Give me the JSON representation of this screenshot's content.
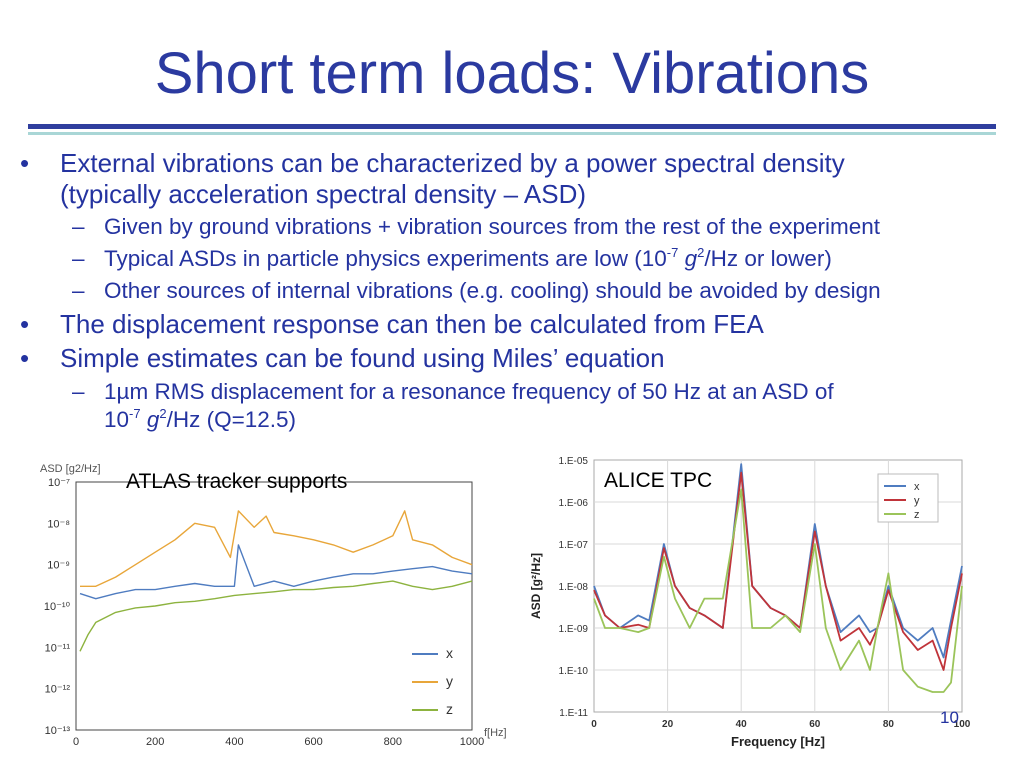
{
  "slide": {
    "title": "Short term loads: Vibrations",
    "page_number": "10",
    "accent_color": "#2f3e9e",
    "rule_color_2": "#a9d6d6"
  },
  "bullets": {
    "b1": {
      "line1": "External vibrations can be characterized by a power spectral density",
      "line2": "(typically acceleration spectral density – ASD)"
    },
    "s1": "Given by ground vibrations + vibration sources from the rest of the experiment",
    "s2": {
      "pre": "Typical ASDs in particle physics experiments are low (10",
      "exp": "-7",
      "g": "g",
      "exp2": "2",
      "post": "/Hz or lower)"
    },
    "s3": "Other sources of internal vibrations (e.g. cooling) should be avoided by design",
    "b2": "The displacement response can then be calculated from FEA",
    "b3": "Simple estimates can be found using Miles’ equation",
    "s4": {
      "line1": "1µm RMS displacement for a resonance frequency of 50 Hz at an ASD of",
      "pre": "10",
      "exp": "-7",
      "g": "g",
      "exp2": "2",
      "post": "/Hz (Q=12.5)"
    },
    "bullet_glyph": "•",
    "dash_glyph": "–"
  },
  "chart_data": [
    {
      "type": "line",
      "caption": "ATLAS tracker supports",
      "ylabel": "ASD [g2/Hz]",
      "xlabel": "f[Hz]",
      "log_y": true,
      "xlim": [
        0,
        1000
      ],
      "ylim": [
        1e-13,
        1e-07
      ],
      "x_ticks": [
        0,
        200,
        400,
        600,
        800,
        1000
      ],
      "y_tick_labels": [
        "10⁻⁷",
        "10⁻⁸",
        "10⁻⁹",
        "10⁻¹⁰",
        "10⁻¹¹",
        "10⁻¹²",
        "10⁻¹³"
      ],
      "series": [
        {
          "name": "x",
          "color": "#4f7cc0",
          "points": [
            [
              10,
              2e-10
            ],
            [
              50,
              1.5e-10
            ],
            [
              100,
              2e-10
            ],
            [
              150,
              2.5e-10
            ],
            [
              200,
              2.5e-10
            ],
            [
              250,
              3e-10
            ],
            [
              300,
              3.5e-10
            ],
            [
              350,
              3e-10
            ],
            [
              400,
              3e-10
            ],
            [
              410,
              3e-09
            ],
            [
              450,
              3e-10
            ],
            [
              500,
              4e-10
            ],
            [
              550,
              3e-10
            ],
            [
              600,
              4e-10
            ],
            [
              650,
              5e-10
            ],
            [
              700,
              6e-10
            ],
            [
              750,
              6e-10
            ],
            [
              800,
              7e-10
            ],
            [
              850,
              8e-10
            ],
            [
              900,
              9e-10
            ],
            [
              950,
              7e-10
            ],
            [
              1000,
              6e-10
            ]
          ]
        },
        {
          "name": "y",
          "color": "#e8a63a",
          "points": [
            [
              10,
              3e-10
            ],
            [
              50,
              3e-10
            ],
            [
              100,
              5e-10
            ],
            [
              150,
              1e-09
            ],
            [
              200,
              2e-09
            ],
            [
              250,
              4e-09
            ],
            [
              300,
              1e-08
            ],
            [
              350,
              8e-09
            ],
            [
              390,
              1.5e-09
            ],
            [
              410,
              2e-08
            ],
            [
              450,
              8e-09
            ],
            [
              480,
              1.5e-08
            ],
            [
              500,
              6e-09
            ],
            [
              550,
              5e-09
            ],
            [
              600,
              4e-09
            ],
            [
              650,
              3e-09
            ],
            [
              700,
              2e-09
            ],
            [
              750,
              3e-09
            ],
            [
              800,
              5e-09
            ],
            [
              830,
              2e-08
            ],
            [
              850,
              4e-09
            ],
            [
              900,
              3e-09
            ],
            [
              950,
              1.5e-09
            ],
            [
              1000,
              1e-09
            ]
          ]
        },
        {
          "name": "z",
          "color": "#8db33f",
          "points": [
            [
              10,
              8e-12
            ],
            [
              30,
              2e-11
            ],
            [
              50,
              4e-11
            ],
            [
              100,
              7e-11
            ],
            [
              150,
              9e-11
            ],
            [
              200,
              1e-10
            ],
            [
              250,
              1.2e-10
            ],
            [
              300,
              1.3e-10
            ],
            [
              350,
              1.5e-10
            ],
            [
              400,
              1.8e-10
            ],
            [
              450,
              2e-10
            ],
            [
              500,
              2.2e-10
            ],
            [
              550,
              2.5e-10
            ],
            [
              600,
              2.5e-10
            ],
            [
              650,
              2.8e-10
            ],
            [
              700,
              3e-10
            ],
            [
              750,
              3.5e-10
            ],
            [
              800,
              4e-10
            ],
            [
              850,
              3e-10
            ],
            [
              900,
              2.5e-10
            ],
            [
              950,
              3e-10
            ],
            [
              1000,
              4e-10
            ]
          ]
        }
      ]
    },
    {
      "type": "line",
      "caption": "ALICE TPC",
      "ylabel": "ASD [g²/Hz]",
      "xlabel": "Frequency [Hz]",
      "log_y": true,
      "xlim": [
        0,
        100
      ],
      "ylim": [
        1e-11,
        1e-05
      ],
      "x_ticks": [
        0,
        20,
        40,
        60,
        80,
        100
      ],
      "y_tick_labels": [
        "1.E-05",
        "1.E-06",
        "1.E-07",
        "1.E-08",
        "1.E-09",
        "1.E-10",
        "1.E-11"
      ],
      "series": [
        {
          "name": "x",
          "color": "#4f7cc0",
          "points": [
            [
              0,
              1e-08
            ],
            [
              3,
              2e-09
            ],
            [
              7,
              1e-09
            ],
            [
              12,
              2e-09
            ],
            [
              15,
              1.5e-09
            ],
            [
              19,
              1e-07
            ],
            [
              22,
              1e-08
            ],
            [
              26,
              3e-09
            ],
            [
              30,
              2e-09
            ],
            [
              35,
              1e-09
            ],
            [
              40,
              8e-06
            ],
            [
              43,
              1e-08
            ],
            [
              48,
              3e-09
            ],
            [
              52,
              2e-09
            ],
            [
              56,
              1e-09
            ],
            [
              60,
              3e-07
            ],
            [
              63,
              1e-08
            ],
            [
              67,
              8e-10
            ],
            [
              72,
              2e-09
            ],
            [
              75,
              8e-10
            ],
            [
              77,
              1e-09
            ],
            [
              80,
              1e-08
            ],
            [
              84,
              1e-09
            ],
            [
              88,
              5e-10
            ],
            [
              92,
              1e-09
            ],
            [
              95,
              2e-10
            ],
            [
              97,
              1.5e-09
            ],
            [
              100,
              3e-08
            ]
          ]
        },
        {
          "name": "y",
          "color": "#c0343a",
          "points": [
            [
              0,
              8e-09
            ],
            [
              3,
              2e-09
            ],
            [
              7,
              1e-09
            ],
            [
              12,
              1.2e-09
            ],
            [
              15,
              1e-09
            ],
            [
              19,
              8e-08
            ],
            [
              22,
              1e-08
            ],
            [
              26,
              3e-09
            ],
            [
              30,
              2e-09
            ],
            [
              35,
              1e-09
            ],
            [
              40,
              5e-06
            ],
            [
              43,
              1e-08
            ],
            [
              48,
              3e-09
            ],
            [
              52,
              2e-09
            ],
            [
              56,
              1e-09
            ],
            [
              60,
              2e-07
            ],
            [
              63,
              1e-08
            ],
            [
              67,
              5e-10
            ],
            [
              72,
              1e-09
            ],
            [
              75,
              4e-10
            ],
            [
              77,
              1e-09
            ],
            [
              80,
              8e-09
            ],
            [
              84,
              8e-10
            ],
            [
              88,
              3e-10
            ],
            [
              92,
              5e-10
            ],
            [
              95,
              1e-10
            ],
            [
              97,
              1e-09
            ],
            [
              100,
              2e-08
            ]
          ]
        },
        {
          "name": "z",
          "color": "#9bc45a",
          "points": [
            [
              0,
              5e-09
            ],
            [
              3,
              1e-09
            ],
            [
              7,
              1e-09
            ],
            [
              12,
              8e-10
            ],
            [
              15,
              1e-09
            ],
            [
              19,
              5e-08
            ],
            [
              22,
              5e-09
            ],
            [
              26,
              1e-09
            ],
            [
              30,
              5e-09
            ],
            [
              35,
              5e-09
            ],
            [
              40,
              2e-06
            ],
            [
              43,
              1e-09
            ],
            [
              48,
              1e-09
            ],
            [
              52,
              2e-09
            ],
            [
              56,
              8e-10
            ],
            [
              60,
              1e-07
            ],
            [
              63,
              1e-09
            ],
            [
              67,
              1e-10
            ],
            [
              72,
              5e-10
            ],
            [
              75,
              1e-10
            ],
            [
              77,
              1e-09
            ],
            [
              80,
              2e-08
            ],
            [
              84,
              1e-10
            ],
            [
              88,
              4e-11
            ],
            [
              92,
              3e-11
            ],
            [
              95,
              3e-11
            ],
            [
              97,
              5e-11
            ],
            [
              100,
              1e-08
            ]
          ]
        }
      ]
    }
  ]
}
